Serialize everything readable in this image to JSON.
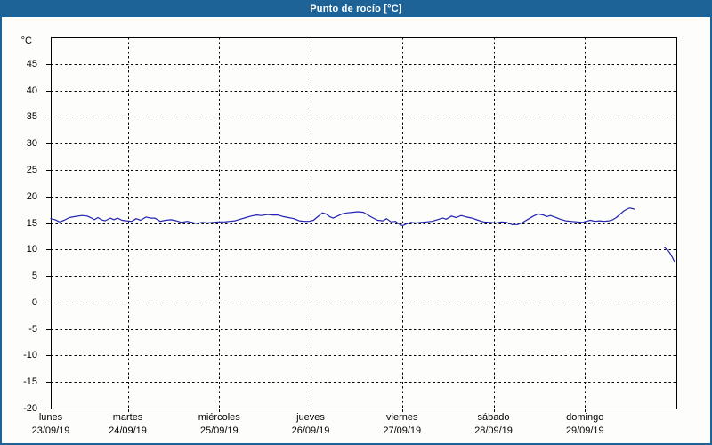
{
  "colors": {
    "titlebar_bg": "#1e6397",
    "window_border": "#1e6397",
    "background": "#fdfdfb",
    "grid": "#000000",
    "line": "#2222b2",
    "title_text": "#ffffff",
    "axis_text": "#000000"
  },
  "chart_data": {
    "type": "line",
    "title": "Punto de rocío [°C]",
    "xlabel": "",
    "ylabel": "°C",
    "ylim": [
      -20,
      50
    ],
    "xlim_days": [
      0.158,
      7
    ],
    "grid": "dashed",
    "legend_position": "none",
    "y_axis": {
      "unit": "°C",
      "ticks": [
        45,
        40,
        35,
        30,
        25,
        20,
        15,
        10,
        5,
        0,
        -5,
        -10,
        -15,
        -20
      ]
    },
    "x_axis": {
      "gridline_ts": [
        1,
        2,
        3,
        4,
        5,
        6
      ],
      "days": [
        {
          "name": "lunes",
          "date": "23/09/19",
          "t": 0
        },
        {
          "name": "martes",
          "date": "24/09/19",
          "t": 1
        },
        {
          "name": "miércoles",
          "date": "25/09/19",
          "t": 2
        },
        {
          "name": "jueves",
          "date": "26/09/19",
          "t": 3
        },
        {
          "name": "viernes",
          "date": "27/09/19",
          "t": 4
        },
        {
          "name": "sábado",
          "date": "28/09/19",
          "t": 5
        },
        {
          "name": "domingo",
          "date": "29/09/19",
          "t": 6
        }
      ]
    },
    "series": [
      {
        "name": "punto de rocío",
        "color": "#2222b2",
        "unit": "°C",
        "segments": [
          [
            [
              0.158,
              15.8
            ],
            [
              0.207,
              15.6
            ],
            [
              0.255,
              15.2
            ],
            [
              0.304,
              15.5
            ],
            [
              0.362,
              16.0
            ],
            [
              0.421,
              16.2
            ],
            [
              0.499,
              16.4
            ],
            [
              0.557,
              16.3
            ],
            [
              0.606,
              15.9
            ],
            [
              0.635,
              15.6
            ],
            [
              0.674,
              16.0
            ],
            [
              0.713,
              15.6
            ],
            [
              0.752,
              15.4
            ],
            [
              0.81,
              15.9
            ],
            [
              0.849,
              15.6
            ],
            [
              0.888,
              15.9
            ],
            [
              0.937,
              15.5
            ],
            [
              0.986,
              15.4
            ],
            [
              1.044,
              15.3
            ],
            [
              1.093,
              15.8
            ],
            [
              1.141,
              15.5
            ],
            [
              1.2,
              16.1
            ],
            [
              1.249,
              15.9
            ],
            [
              1.297,
              15.9
            ],
            [
              1.356,
              15.3
            ],
            [
              1.414,
              15.5
            ],
            [
              1.473,
              15.6
            ],
            [
              1.531,
              15.4
            ],
            [
              1.59,
              15.1
            ],
            [
              1.648,
              15.3
            ],
            [
              1.706,
              15.1
            ],
            [
              1.755,
              14.9
            ],
            [
              1.814,
              15.1
            ],
            [
              1.872,
              15.0
            ],
            [
              1.93,
              15.1
            ],
            [
              1.989,
              15.2
            ],
            [
              2.057,
              15.2
            ],
            [
              2.115,
              15.3
            ],
            [
              2.174,
              15.4
            ],
            [
              2.232,
              15.7
            ],
            [
              2.291,
              16.0
            ],
            [
              2.349,
              16.3
            ],
            [
              2.408,
              16.5
            ],
            [
              2.466,
              16.4
            ],
            [
              2.525,
              16.6
            ],
            [
              2.583,
              16.5
            ],
            [
              2.642,
              16.5
            ],
            [
              2.7,
              16.2
            ],
            [
              2.758,
              16.0
            ],
            [
              2.817,
              15.8
            ],
            [
              2.875,
              15.4
            ],
            [
              2.934,
              15.3
            ],
            [
              2.982,
              15.3
            ],
            [
              3.031,
              15.5
            ],
            [
              3.08,
              16.2
            ],
            [
              3.129,
              16.9
            ],
            [
              3.168,
              16.7
            ],
            [
              3.207,
              16.2
            ],
            [
              3.246,
              15.9
            ],
            [
              3.294,
              16.3
            ],
            [
              3.343,
              16.7
            ],
            [
              3.402,
              16.9
            ],
            [
              3.46,
              17.0
            ],
            [
              3.518,
              17.1
            ],
            [
              3.577,
              17.0
            ],
            [
              3.626,
              16.5
            ],
            [
              3.674,
              16.0
            ],
            [
              3.733,
              15.5
            ],
            [
              3.791,
              15.4
            ],
            [
              3.83,
              15.8
            ],
            [
              3.879,
              15.2
            ],
            [
              3.928,
              15.3
            ],
            [
              3.966,
              14.8
            ],
            [
              4.005,
              14.5
            ],
            [
              4.044,
              14.8
            ],
            [
              4.093,
              15.1
            ],
            [
              4.151,
              15.0
            ],
            [
              4.21,
              15.1
            ],
            [
              4.268,
              15.2
            ],
            [
              4.327,
              15.3
            ],
            [
              4.385,
              15.6
            ],
            [
              4.444,
              15.9
            ],
            [
              4.483,
              15.7
            ],
            [
              4.541,
              16.3
            ],
            [
              4.59,
              16.0
            ],
            [
              4.648,
              16.4
            ],
            [
              4.707,
              16.1
            ],
            [
              4.765,
              15.9
            ],
            [
              4.833,
              15.5
            ],
            [
              4.892,
              15.2
            ],
            [
              4.96,
              15.1
            ],
            [
              5.028,
              15.0
            ],
            [
              5.086,
              15.2
            ],
            [
              5.145,
              15.1
            ],
            [
              5.203,
              14.7
            ],
            [
              5.262,
              14.7
            ],
            [
              5.32,
              15.1
            ],
            [
              5.379,
              15.7
            ],
            [
              5.437,
              16.3
            ],
            [
              5.486,
              16.7
            ],
            [
              5.544,
              16.5
            ],
            [
              5.583,
              16.2
            ],
            [
              5.622,
              16.4
            ],
            [
              5.671,
              16.1
            ],
            [
              5.729,
              15.7
            ],
            [
              5.788,
              15.4
            ],
            [
              5.846,
              15.3
            ],
            [
              5.914,
              15.2
            ],
            [
              5.973,
              15.1
            ],
            [
              6.011,
              15.3
            ],
            [
              6.06,
              15.5
            ],
            [
              6.109,
              15.3
            ],
            [
              6.158,
              15.4
            ],
            [
              6.206,
              15.3
            ],
            [
              6.265,
              15.4
            ],
            [
              6.304,
              15.6
            ],
            [
              6.343,
              16.0
            ],
            [
              6.382,
              16.6
            ],
            [
              6.421,
              17.2
            ],
            [
              6.46,
              17.6
            ],
            [
              6.489,
              17.8
            ],
            [
              6.518,
              17.7
            ],
            [
              6.538,
              17.6
            ]
          ],
          [
            [
              6.869,
              10.4
            ],
            [
              6.898,
              10.0
            ],
            [
              6.927,
              9.4
            ],
            [
              6.956,
              8.5
            ],
            [
              6.976,
              7.8
            ]
          ]
        ]
      }
    ]
  }
}
